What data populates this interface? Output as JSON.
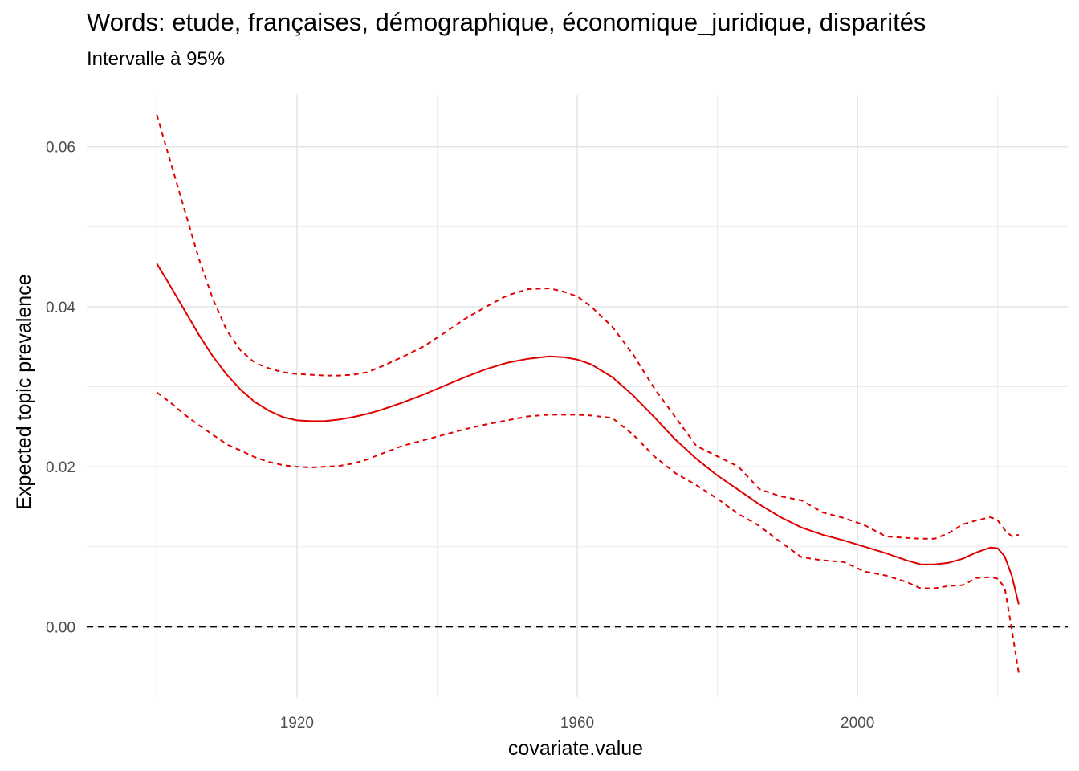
{
  "title": "Words: etude, françaises, démographique, économique_juridique, disparités",
  "subtitle": "Intervalle à 95%",
  "chart_data": {
    "type": "line",
    "title": "Words: etude, françaises, démographique, économique_juridique, disparités",
    "subtitle": "Intervalle à 95%",
    "xlabel": "covariate.value",
    "ylabel": "Expected topic prevalence",
    "xlim": [
      1890,
      2030
    ],
    "ylim": [
      -0.0088,
      0.0665
    ],
    "x_ticks": [
      1920,
      1960,
      2000
    ],
    "x_tick_labels": [
      "1920",
      "1960",
      "2000"
    ],
    "y_ticks": [
      0.0,
      0.02,
      0.04,
      0.06
    ],
    "y_tick_labels": [
      "0.00",
      "0.02",
      "0.04",
      "0.06"
    ],
    "grid": true,
    "reference_line": {
      "y": 0.0,
      "style": "dashed",
      "color": "#000000"
    },
    "series_color": "#e00000",
    "series": [
      {
        "role": "estimate",
        "style": "solid",
        "x": [
          1900,
          1902,
          1904,
          1906,
          1908,
          1910,
          1912,
          1914,
          1916,
          1918,
          1920,
          1922,
          1924,
          1926,
          1928,
          1930,
          1932,
          1935,
          1938,
          1941,
          1944,
          1947,
          1950,
          1953,
          1956,
          1958,
          1960,
          1962,
          1965,
          1968,
          1971,
          1974,
          1977,
          1980,
          1983,
          1986,
          1989,
          1992,
          1995,
          1998,
          2001,
          2004,
          2007,
          2009,
          2011,
          2013,
          2015,
          2017,
          2019,
          2020,
          2021,
          2022,
          2023
        ],
        "y": [
          0.0454,
          0.0425,
          0.0395,
          0.0365,
          0.0338,
          0.0315,
          0.0296,
          0.0281,
          0.027,
          0.0262,
          0.0258,
          0.0257,
          0.0257,
          0.0259,
          0.0262,
          0.0266,
          0.0271,
          0.028,
          0.029,
          0.0301,
          0.0312,
          0.0322,
          0.033,
          0.0335,
          0.0338,
          0.0337,
          0.0334,
          0.0328,
          0.0312,
          0.0289,
          0.0262,
          0.0234,
          0.021,
          0.0189,
          0.0171,
          0.0153,
          0.0137,
          0.0124,
          0.0115,
          0.0108,
          0.01,
          0.0092,
          0.0083,
          0.0078,
          0.0078,
          0.008,
          0.0085,
          0.0093,
          0.0099,
          0.0098,
          0.0088,
          0.0064,
          0.0028
        ]
      },
      {
        "role": "upper bound",
        "style": "dashed",
        "x": [
          1900,
          1902,
          1904,
          1906,
          1908,
          1910,
          1912,
          1914,
          1916,
          1918,
          1920,
          1922,
          1924,
          1926,
          1928,
          1930,
          1932,
          1935,
          1938,
          1941,
          1944,
          1947,
          1950,
          1953,
          1956,
          1958,
          1960,
          1962,
          1965,
          1968,
          1971,
          1974,
          1977,
          1980,
          1983,
          1986,
          1989,
          1992,
          1995,
          1998,
          2001,
          2004,
          2007,
          2009,
          2011,
          2013,
          2015,
          2017,
          2019,
          2020,
          2021,
          2022,
          2023
        ],
        "y": [
          0.064,
          0.058,
          0.052,
          0.046,
          0.041,
          0.037,
          0.0345,
          0.033,
          0.0323,
          0.0318,
          0.0316,
          0.0315,
          0.0314,
          0.0314,
          0.0315,
          0.0318,
          0.0325,
          0.0337,
          0.035,
          0.0367,
          0.0385,
          0.04,
          0.0414,
          0.0422,
          0.0423,
          0.0419,
          0.0413,
          0.04,
          0.0375,
          0.034,
          0.0298,
          0.0262,
          0.0226,
          0.0213,
          0.02,
          0.0172,
          0.0163,
          0.0158,
          0.0143,
          0.0136,
          0.0127,
          0.0113,
          0.0111,
          0.011,
          0.011,
          0.0117,
          0.0128,
          0.0133,
          0.0137,
          0.0133,
          0.0121,
          0.0113,
          0.0115
        ]
      },
      {
        "role": "lower bound",
        "style": "dashed",
        "x": [
          1900,
          1902,
          1904,
          1906,
          1908,
          1910,
          1912,
          1914,
          1916,
          1918,
          1920,
          1922,
          1924,
          1926,
          1928,
          1930,
          1932,
          1935,
          1938,
          1941,
          1944,
          1947,
          1950,
          1953,
          1956,
          1958,
          1960,
          1962,
          1965,
          1968,
          1971,
          1974,
          1977,
          1980,
          1983,
          1986,
          1989,
          1992,
          1995,
          1998,
          2001,
          2004,
          2007,
          2009,
          2011,
          2013,
          2015,
          2017,
          2019,
          2020,
          2021,
          2022,
          2023
        ],
        "y": [
          0.0293,
          0.028,
          0.0265,
          0.0252,
          0.024,
          0.0228,
          0.022,
          0.0212,
          0.0206,
          0.0202,
          0.02,
          0.0199,
          0.02,
          0.0201,
          0.0204,
          0.0209,
          0.0216,
          0.0226,
          0.0233,
          0.024,
          0.0247,
          0.0253,
          0.0258,
          0.0263,
          0.0265,
          0.0265,
          0.0265,
          0.0264,
          0.0261,
          0.024,
          0.0213,
          0.0192,
          0.0177,
          0.016,
          0.0141,
          0.0126,
          0.0106,
          0.0087,
          0.0083,
          0.0081,
          0.0069,
          0.0064,
          0.0056,
          0.0048,
          0.0048,
          0.0051,
          0.0052,
          0.0061,
          0.0062,
          0.006,
          0.0049,
          -0.0003,
          -0.0058
        ]
      }
    ]
  }
}
